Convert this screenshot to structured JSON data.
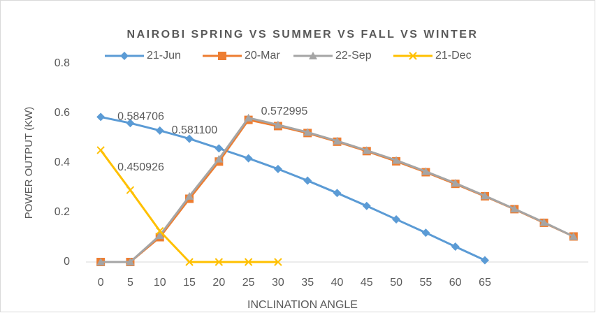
{
  "chart_data": {
    "type": "line",
    "title": "NAIROBI SPRING VS SUMMER VS FALL VS WINTER",
    "x_label": "INCLINATION ANGLE",
    "y_label": "POWER OUTPUT (KW)",
    "categories": [
      "0",
      "5",
      "10",
      "15",
      "20",
      "25",
      "30",
      "35",
      "40",
      "45",
      "50",
      "55",
      "60",
      "65",
      null,
      null,
      null
    ],
    "series": [
      {
        "name": "21-Jun",
        "color": "#5b9bd5",
        "marker": "diamond",
        "values": [
          0.584706,
          0.56,
          0.53,
          0.497,
          0.458,
          0.418,
          0.375,
          0.328,
          0.278,
          0.226,
          0.172,
          0.118,
          0.062,
          0.007,
          null,
          null,
          null
        ],
        "value_labels": [
          "0.584706",
          null,
          null,
          null,
          null,
          null,
          null,
          null,
          null,
          null,
          null,
          null,
          null,
          null,
          null,
          null,
          null
        ]
      },
      {
        "name": "20-Mar",
        "color": "#ed7d31",
        "marker": "square",
        "values": [
          0,
          0,
          0.1,
          0.255,
          0.405,
          0.572995,
          0.548,
          0.52,
          0.485,
          0.447,
          0.406,
          0.362,
          0.315,
          0.265,
          0.213,
          0.158,
          0.103
        ],
        "value_labels": [
          null,
          null,
          null,
          null,
          null,
          "0.572995",
          null,
          null,
          null,
          null,
          null,
          null,
          null,
          null,
          null,
          null,
          null
        ]
      },
      {
        "name": "22-Sep",
        "color": "#a5a5a5",
        "marker": "triangle",
        "values": [
          0,
          0,
          0.107,
          0.265,
          0.415,
          0.5811,
          0.553,
          0.523,
          0.488,
          0.45,
          0.41,
          0.365,
          0.318,
          0.267,
          0.214,
          0.16,
          0.103
        ],
        "value_labels": [
          null,
          null,
          null,
          null,
          null,
          "0.581100",
          null,
          null,
          null,
          null,
          null,
          null,
          null,
          null,
          null,
          null,
          null
        ]
      },
      {
        "name": "21-Dec",
        "color": "#ffc000",
        "marker": "x",
        "values": [
          0.450926,
          0.29,
          0.125,
          0,
          0,
          0,
          0,
          null,
          null,
          null,
          null,
          null,
          null,
          null,
          null,
          null,
          null
        ],
        "value_labels": [
          "0.450926",
          null,
          null,
          null,
          null,
          null,
          null,
          null,
          null,
          null,
          null,
          null,
          null,
          null,
          null,
          null,
          null
        ]
      }
    ],
    "ylim": [
      0,
      0.8
    ],
    "yticks": [
      0,
      0.2,
      0.4,
      0.6,
      0.8
    ],
    "grid": false,
    "legend": "top"
  }
}
